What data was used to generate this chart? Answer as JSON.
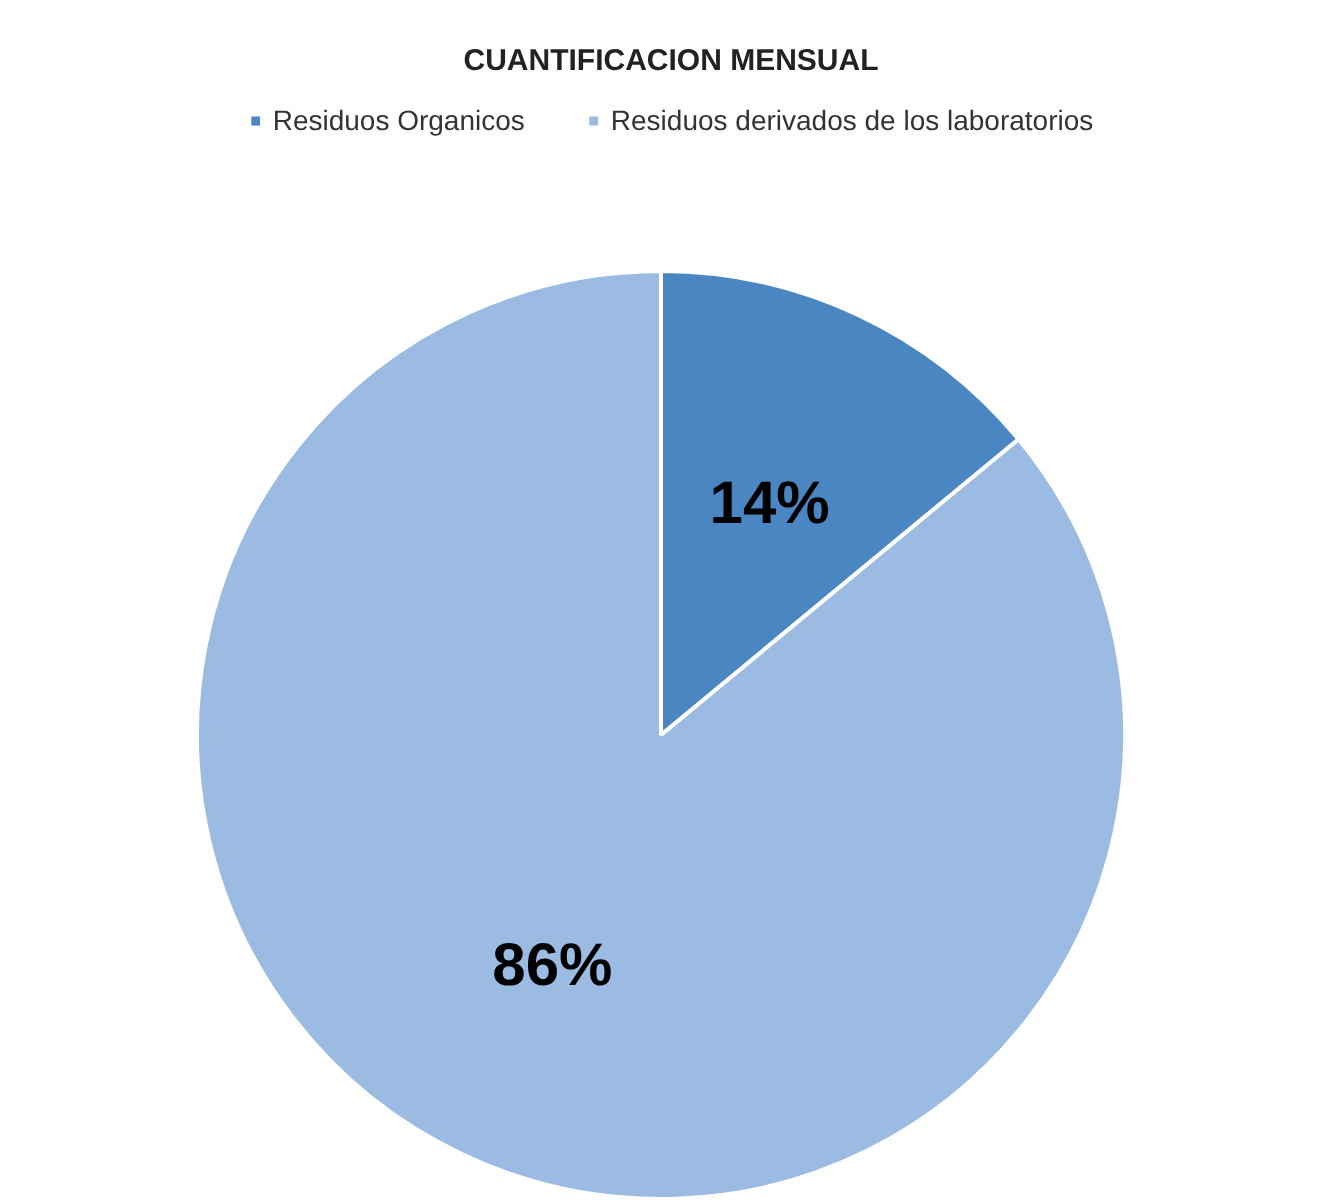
{
  "chart_data": {
    "type": "pie",
    "title": "CUANTIFICACION MENSUAL",
    "categories": [
      "Residuos Organicos",
      "Residuos derivados de los laboratorios"
    ],
    "values": [
      14,
      86
    ],
    "colors": [
      "#4a86c2",
      "#9bbbe3"
    ],
    "value_labels": [
      "14%",
      "86%"
    ],
    "legend": "top"
  }
}
